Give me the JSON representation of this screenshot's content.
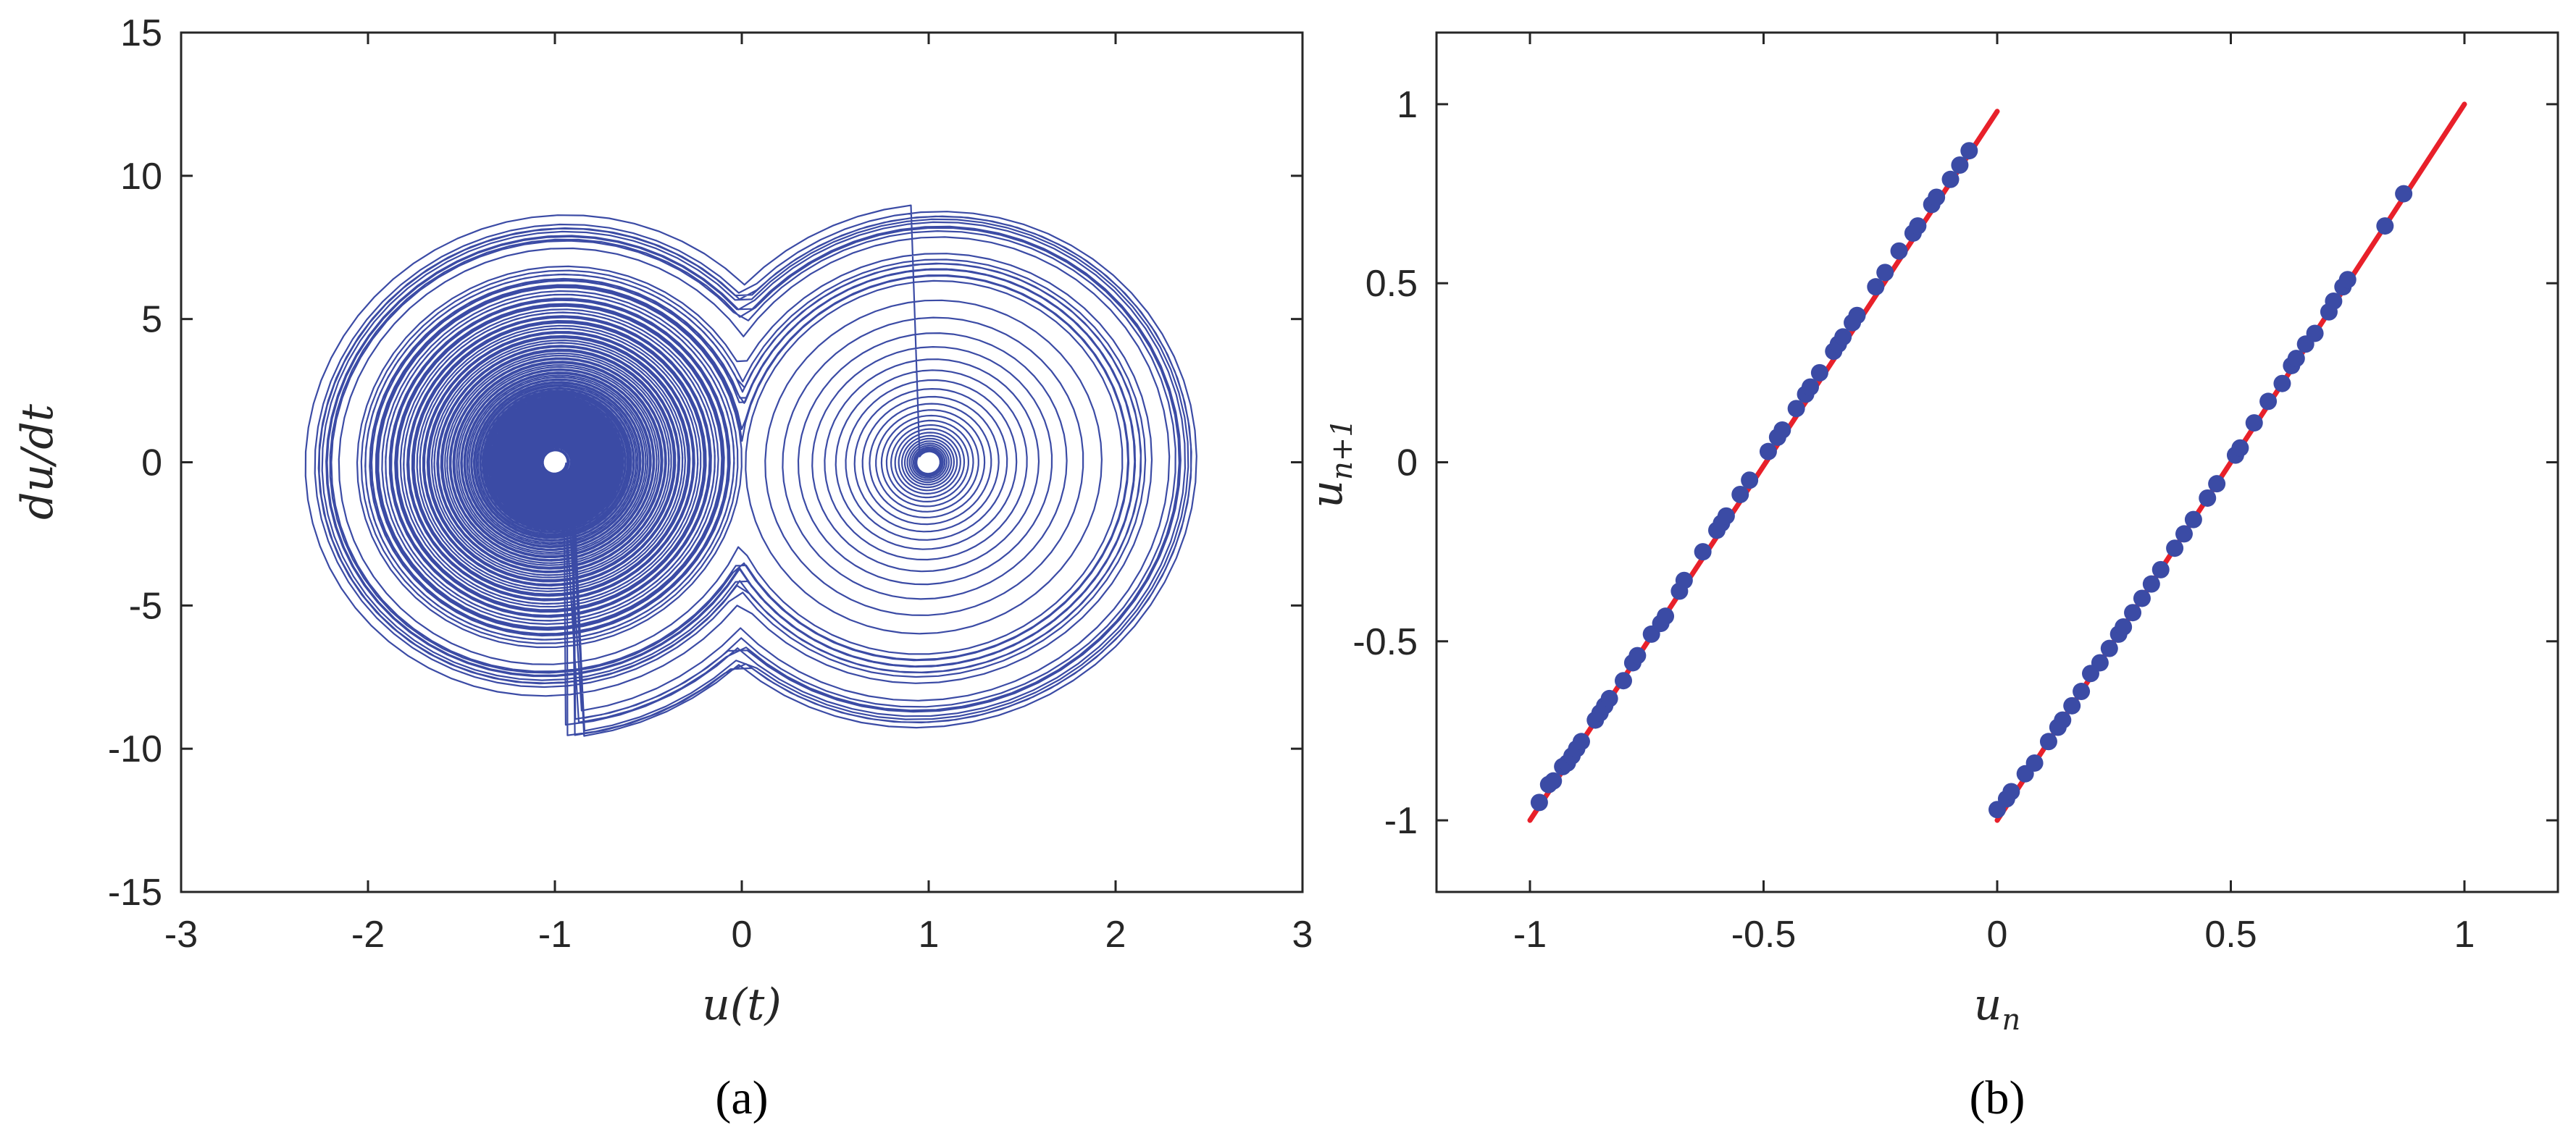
{
  "colors": {
    "trajectory": "#3B4BA5",
    "map_line": "#E8202A",
    "map_points": "#3B4BA5",
    "axes": "#262626"
  },
  "chart_data": [
    {
      "panel": "(a)",
      "type": "line",
      "xlabel": "u(t)",
      "ylabel": "du/dt",
      "xlim": [
        -3,
        3
      ],
      "ylim": [
        -15,
        15
      ],
      "xticks": [
        "-3",
        "-2",
        "-1",
        "0",
        "1",
        "2",
        "3"
      ],
      "yticks": [
        "15",
        "10",
        "5",
        "0",
        "-5",
        "-10",
        "-15"
      ],
      "grid": false,
      "legend": "none",
      "series": [
        {
          "description_free": true,
          "left_spiral_center": [
            -1.0,
            0.0
          ],
          "right_spiral_center": [
            1.0,
            0.0
          ],
          "x_range": [
            -2.33,
            2.4
          ],
          "y_range": [
            -10.6,
            10.0
          ]
        }
      ]
    },
    {
      "panel": "(b)",
      "type": "scatter",
      "xlabel": "u_n",
      "ylabel": "u_{n+1}",
      "xlim": [
        -1.2,
        1.2
      ],
      "ylim": [
        -1.2,
        1.2
      ],
      "xticks": [
        "-1",
        "-0.5",
        "0",
        "0.5",
        "1"
      ],
      "yticks": [
        "1",
        "0.5",
        "0",
        "-0.5",
        "-1"
      ],
      "grid": false,
      "legend": "none",
      "lines": [
        {
          "x": [
            -1.0,
            0.0
          ],
          "y": [
            -1.0,
            0.98
          ]
        },
        {
          "x": [
            0.0,
            1.0
          ],
          "y": [
            -1.0,
            1.0
          ]
        }
      ],
      "points": [
        [
          -0.98,
          -0.95
        ],
        [
          -0.96,
          -0.9
        ],
        [
          -0.95,
          -0.89
        ],
        [
          -0.93,
          -0.85
        ],
        [
          -0.92,
          -0.84
        ],
        [
          -0.91,
          -0.82
        ],
        [
          -0.9,
          -0.8
        ],
        [
          -0.89,
          -0.78
        ],
        [
          -0.86,
          -0.72
        ],
        [
          -0.85,
          -0.7
        ],
        [
          -0.84,
          -0.68
        ],
        [
          -0.83,
          -0.66
        ],
        [
          -0.8,
          -0.61
        ],
        [
          -0.78,
          -0.56
        ],
        [
          -0.77,
          -0.54
        ],
        [
          -0.74,
          -0.48
        ],
        [
          -0.72,
          -0.45
        ],
        [
          -0.71,
          -0.43
        ],
        [
          -0.68,
          -0.36
        ],
        [
          -0.67,
          -0.33
        ],
        [
          -0.63,
          -0.25
        ],
        [
          -0.6,
          -0.19
        ],
        [
          -0.59,
          -0.17
        ],
        [
          -0.58,
          -0.15
        ],
        [
          -0.55,
          -0.09
        ],
        [
          -0.53,
          -0.05
        ],
        [
          -0.49,
          0.03
        ],
        [
          -0.47,
          0.07
        ],
        [
          -0.46,
          0.09
        ],
        [
          -0.43,
          0.15
        ],
        [
          -0.41,
          0.19
        ],
        [
          -0.4,
          0.21
        ],
        [
          -0.38,
          0.25
        ],
        [
          -0.35,
          0.31
        ],
        [
          -0.34,
          0.33
        ],
        [
          -0.33,
          0.35
        ],
        [
          -0.31,
          0.39
        ],
        [
          -0.3,
          0.41
        ],
        [
          -0.26,
          0.49
        ],
        [
          -0.24,
          0.53
        ],
        [
          -0.21,
          0.59
        ],
        [
          -0.18,
          0.64
        ],
        [
          -0.17,
          0.66
        ],
        [
          -0.14,
          0.72
        ],
        [
          -0.13,
          0.74
        ],
        [
          -0.1,
          0.79
        ],
        [
          -0.08,
          0.83
        ],
        [
          -0.06,
          0.87
        ],
        [
          0.0,
          -0.97
        ],
        [
          0.02,
          -0.94
        ],
        [
          0.03,
          -0.92
        ],
        [
          0.06,
          -0.87
        ],
        [
          0.08,
          -0.84
        ],
        [
          0.11,
          -0.78
        ],
        [
          0.13,
          -0.74
        ],
        [
          0.14,
          -0.72
        ],
        [
          0.16,
          -0.68
        ],
        [
          0.18,
          -0.64
        ],
        [
          0.2,
          -0.59
        ],
        [
          0.22,
          -0.56
        ],
        [
          0.24,
          -0.52
        ],
        [
          0.26,
          -0.48
        ],
        [
          0.27,
          -0.46
        ],
        [
          0.29,
          -0.42
        ],
        [
          0.31,
          -0.38
        ],
        [
          0.33,
          -0.34
        ],
        [
          0.35,
          -0.3
        ],
        [
          0.38,
          -0.24
        ],
        [
          0.4,
          -0.2
        ],
        [
          0.42,
          -0.16
        ],
        [
          0.45,
          -0.1
        ],
        [
          0.47,
          -0.06
        ],
        [
          0.51,
          0.02
        ],
        [
          0.52,
          0.04
        ],
        [
          0.55,
          0.11
        ],
        [
          0.58,
          0.17
        ],
        [
          0.61,
          0.22
        ],
        [
          0.63,
          0.27
        ],
        [
          0.64,
          0.29
        ],
        [
          0.66,
          0.33
        ],
        [
          0.68,
          0.36
        ],
        [
          0.71,
          0.42
        ],
        [
          0.72,
          0.45
        ],
        [
          0.74,
          0.49
        ],
        [
          0.75,
          0.51
        ],
        [
          0.83,
          0.66
        ],
        [
          0.87,
          0.75
        ]
      ]
    }
  ],
  "panel_labels": {
    "a": "(a)",
    "b": "(b)"
  }
}
